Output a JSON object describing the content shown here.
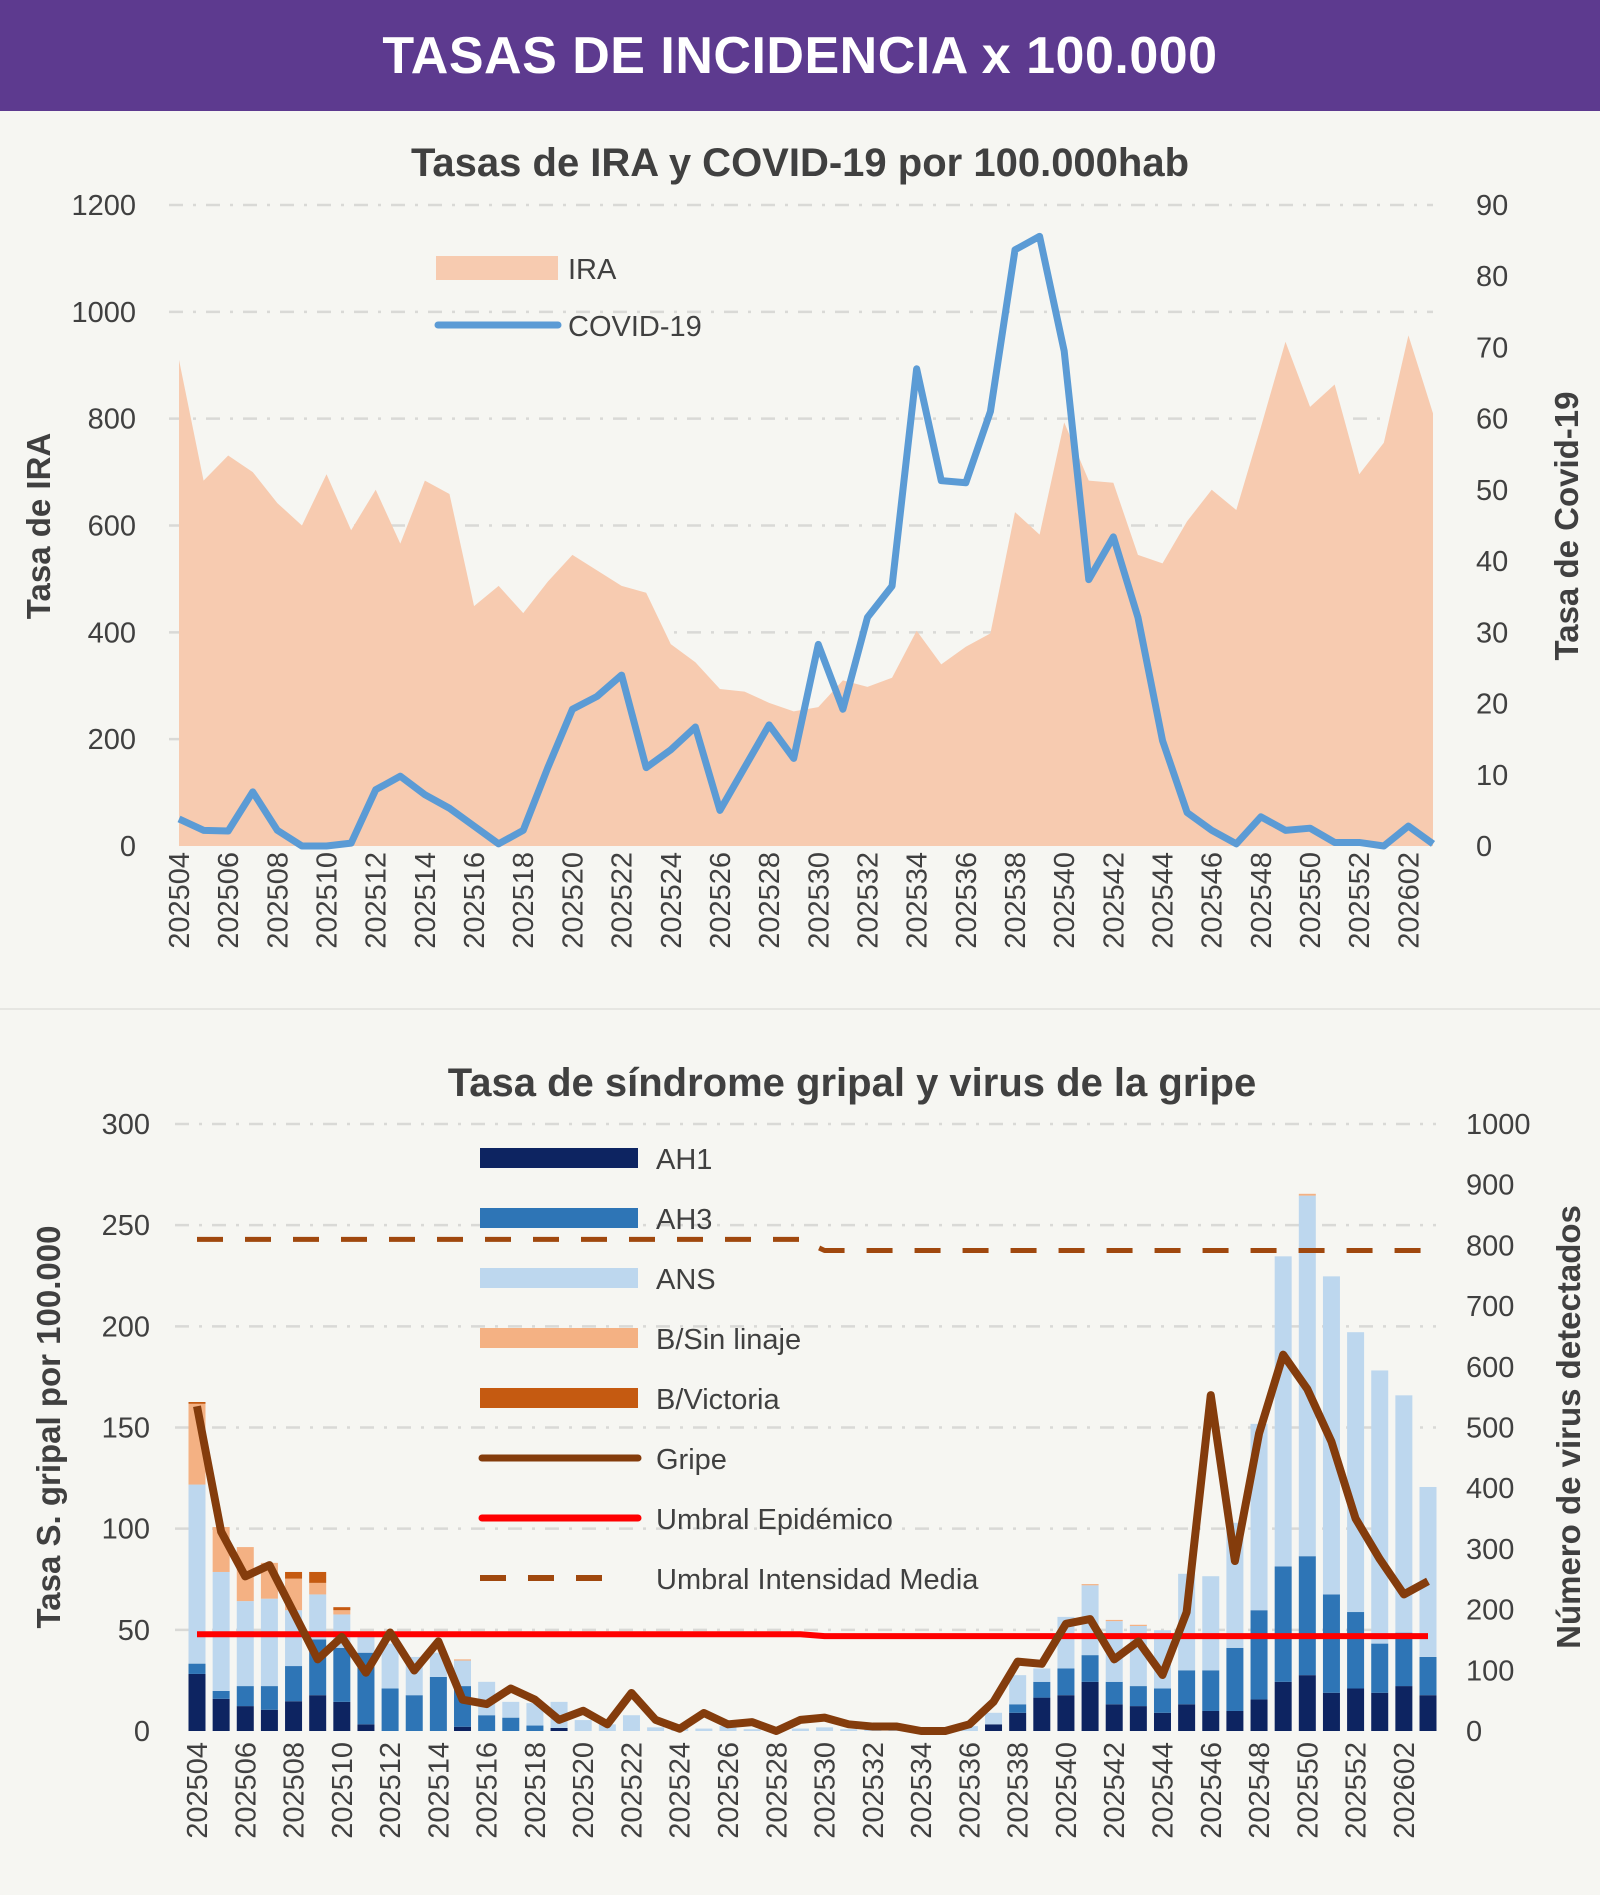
{
  "header": {
    "title": "TASAS DE INCIDENCIA x 100.000"
  },
  "colors": {
    "header_bg": "#5d3a8f",
    "IRA": "#f7cbb0",
    "COVID-19": "#5b9bd5",
    "AH1": "#0d2461",
    "AH3": "#2e75b6",
    "ANS": "#bdd7ee",
    "B/Sin linaje": "#f4b183",
    "B/Victoria": "#c55a11",
    "Gripe": "#843c0c",
    "Umbral Epidémico": "#ff0000",
    "Umbral Intensidad Media": "#a0480e"
  },
  "chart_data": [
    {
      "type": "area+line",
      "title": "Tasas de IRA y COVID-19 por 100.000hab",
      "ylabel": "Tasa de IRA",
      "y2label": "Tasa de Covid-19",
      "ylim": [
        0,
        1200
      ],
      "yticks": [
        0,
        200,
        400,
        600,
        800,
        1000,
        1200
      ],
      "y2lim": [
        0,
        90
      ],
      "y2ticks": [
        0,
        10,
        20,
        30,
        40,
        50,
        60,
        70,
        80,
        90
      ],
      "grid": true,
      "legend_position": "top-left",
      "x": [
        "202504",
        "202505",
        "202506",
        "202507",
        "202508",
        "202509",
        "202510",
        "202511",
        "202512",
        "202513",
        "202514",
        "202515",
        "202516",
        "202517",
        "202518",
        "202519",
        "202520",
        "202521",
        "202522",
        "202523",
        "202524",
        "202525",
        "202526",
        "202527",
        "202528",
        "202529",
        "202530",
        "202531",
        "202532",
        "202533",
        "202534",
        "202535",
        "202536",
        "202537",
        "202538",
        "202539",
        "202540",
        "202541",
        "202542",
        "202543",
        "202544",
        "202545",
        "202546",
        "202547",
        "202548",
        "202549",
        "202550",
        "202551",
        "202552",
        "202601",
        "202602",
        "202603"
      ],
      "xticks": [
        "202504",
        "202506",
        "202508",
        "202510",
        "202512",
        "202514",
        "202516",
        "202518",
        "202520",
        "202522",
        "202524",
        "202526",
        "202528",
        "202530",
        "202532",
        "202534",
        "202536",
        "202538",
        "202540",
        "202542",
        "202544",
        "202546",
        "202548",
        "202550",
        "202552",
        "202602"
      ],
      "series": [
        {
          "name": "IRA",
          "type": "area",
          "axis": "left",
          "values": [
            910,
            684,
            731,
            700,
            642,
            600,
            696,
            591,
            667,
            566,
            684,
            659,
            449,
            487,
            436,
            495,
            545,
            516,
            487,
            474,
            378,
            344,
            294,
            289,
            268,
            252,
            260,
            310,
            298,
            315,
            403,
            340,
            373,
            398,
            625,
            583,
            793,
            684,
            680,
            545,
            529,
            608,
            667,
            629,
            784,
            944,
            822,
            864,
            696,
            755,
            956,
            810
          ]
        },
        {
          "name": "COVID-19",
          "type": "line",
          "axis": "right",
          "values": [
            3.8,
            2.2,
            2.1,
            7.6,
            2.2,
            0,
            0,
            0.4,
            7.9,
            9.8,
            7.2,
            5.3,
            2.8,
            0.3,
            2.2,
            11,
            19.2,
            21,
            24,
            11,
            13.5,
            16.7,
            5,
            11,
            17,
            12.3,
            28.3,
            19.2,
            32.1,
            36.5,
            67,
            51.3,
            51,
            61,
            83.7,
            85.6,
            69.5,
            37.4,
            43.4,
            32.1,
            14.8,
            4.7,
            2.2,
            0.3,
            4.1,
            2.2,
            2.5,
            0.5,
            0.5,
            0,
            2.8,
            0.3
          ]
        }
      ]
    },
    {
      "type": "stacked-bar+line",
      "title": "Tasa de síndrome gripal y virus de la gripe",
      "ylabel": "Tasa S. gripal por 100.000",
      "y2label": "Número de virus detectados",
      "ylim": [
        0,
        300
      ],
      "yticks": [
        0,
        50,
        100,
        150,
        200,
        250,
        300
      ],
      "y2lim": [
        0,
        1000
      ],
      "y2ticks": [
        0,
        100,
        200,
        300,
        400,
        500,
        600,
        700,
        800,
        900,
        1000
      ],
      "grid": true,
      "legend_position": "top-left",
      "x": [
        "202504",
        "202505",
        "202506",
        "202507",
        "202508",
        "202509",
        "202510",
        "202511",
        "202512",
        "202513",
        "202514",
        "202515",
        "202516",
        "202517",
        "202518",
        "202519",
        "202520",
        "202521",
        "202522",
        "202523",
        "202524",
        "202525",
        "202526",
        "202527",
        "202528",
        "202529",
        "202530",
        "202531",
        "202532",
        "202533",
        "202534",
        "202535",
        "202536",
        "202537",
        "202538",
        "202539",
        "202540",
        "202541",
        "202542",
        "202543",
        "202544",
        "202545",
        "202546",
        "202547",
        "202548",
        "202549",
        "202550",
        "202551",
        "202552",
        "202601",
        "202602",
        "202603"
      ],
      "xticks": [
        "202504",
        "202506",
        "202508",
        "202510",
        "202512",
        "202514",
        "202516",
        "202518",
        "202520",
        "202522",
        "202524",
        "202526",
        "202528",
        "202530",
        "202532",
        "202534",
        "202536",
        "202538",
        "202540",
        "202542",
        "202544",
        "202546",
        "202548",
        "202550",
        "202552",
        "202602"
      ],
      "bars": [
        {
          "name": "AH1",
          "axis": "right",
          "values": [
            94,
            53,
            41,
            35,
            49,
            59,
            48,
            11,
            0,
            0,
            0,
            7,
            0,
            0,
            0,
            5,
            0,
            0,
            0,
            0,
            0,
            0,
            0,
            0,
            0,
            0,
            0,
            0,
            0,
            0,
            0,
            0,
            0,
            11,
            30,
            55,
            59,
            81,
            44,
            41,
            30,
            44,
            33,
            33,
            52,
            81,
            92,
            63,
            70,
            63,
            74,
            59
          ]
        },
        {
          "name": "AH3",
          "axis": "right",
          "values": [
            17,
            13,
            33,
            39,
            58,
            92,
            89,
            118,
            70,
            59,
            89,
            67,
            26,
            22,
            9,
            0,
            0,
            0,
            0,
            0,
            0,
            0,
            0,
            0,
            0,
            0,
            0,
            0,
            0,
            0,
            0,
            0,
            0,
            0,
            14,
            26,
            44,
            44,
            37,
            33,
            40,
            56,
            67,
            104,
            147,
            190,
            196,
            162,
            126,
            81,
            88,
            63
          ]
        },
        {
          "name": "ANS",
          "axis": "right",
          "values": [
            295,
            196,
            140,
            144,
            92,
            74,
            55,
            30,
            74,
            63,
            40,
            42,
            55,
            26,
            37,
            43,
            18,
            11,
            26,
            6,
            10,
            4,
            8,
            3,
            5,
            4,
            6,
            3,
            4,
            3,
            2,
            3,
            8,
            19,
            48,
            22,
            85,
            115,
            100,
            99,
            96,
            159,
            155,
            206,
            307,
            511,
            594,
            524,
            461,
            450,
            391,
            280
          ]
        },
        {
          "name": "B/Sin linaje",
          "axis": "right",
          "values": [
            133,
            74,
            89,
            59,
            52,
            19,
            7,
            0,
            0,
            0,
            0,
            2,
            0,
            0,
            0,
            0,
            0,
            0,
            0,
            0,
            0,
            0,
            0,
            0,
            0,
            0,
            0,
            0,
            0,
            0,
            0,
            0,
            0,
            0,
            0,
            0,
            0,
            2,
            2,
            2,
            0,
            0,
            0,
            0,
            0,
            0,
            3,
            0,
            0,
            0,
            0,
            0
          ]
        },
        {
          "name": "B/Victoria",
          "axis": "right",
          "values": [
            3,
            0,
            0,
            0,
            11,
            18,
            5,
            0,
            0,
            0,
            0,
            0,
            0,
            0,
            0,
            0,
            0,
            0,
            0,
            0,
            0,
            0,
            0,
            0,
            0,
            0,
            0,
            0,
            0,
            0,
            0,
            0,
            0,
            0,
            0,
            0,
            0,
            0,
            0,
            0,
            0,
            0,
            0,
            0,
            0,
            0,
            0,
            0,
            0,
            0,
            0,
            0
          ]
        }
      ],
      "lines": [
        {
          "name": "Gripe",
          "axis": "left",
          "style": "solid",
          "values": [
            160.5,
            98.5,
            76.4,
            82,
            58.7,
            35.4,
            46.5,
            28.8,
            48.7,
            29.9,
            44.3,
            15.5,
            13.3,
            21,
            15.5,
            5.5,
            10,
            3.3,
            18.8,
            5.5,
            1.1,
            8.9,
            3.3,
            4.4,
            0,
            5.5,
            6.6,
            3.3,
            2.2,
            2.2,
            0,
            0,
            3.3,
            14.4,
            34.3,
            33.2,
            53,
            55.3,
            35.4,
            44.3,
            27.7,
            58.7,
            166,
            84,
            147,
            186,
            169,
            143,
            105,
            85,
            67.5,
            74
          ]
        },
        {
          "name": "Umbral Epidémico",
          "axis": "left",
          "style": "solid",
          "values": [
            47.8,
            47.8,
            47.8,
            47.8,
            47.8,
            47.8,
            47.8,
            47.8,
            47.8,
            47.8,
            47.8,
            47.8,
            47.8,
            47.8,
            47.8,
            47.8,
            47.8,
            47.8,
            47.8,
            47.8,
            47.8,
            47.8,
            47.8,
            47.8,
            47.8,
            47.8,
            46.9,
            46.9,
            46.9,
            46.9,
            46.9,
            46.9,
            46.9,
            46.9,
            46.9,
            46.9,
            46.9,
            46.9,
            46.9,
            46.9,
            46.9,
            46.9,
            46.9,
            46.9,
            46.9,
            46.9,
            46.9,
            46.9,
            46.9,
            46.9,
            46.9,
            46.9
          ]
        },
        {
          "name": "Umbral Intensidad Media",
          "axis": "left",
          "style": "dashed",
          "values": [
            243,
            243,
            243,
            243,
            243,
            243,
            243,
            243,
            243,
            243,
            243,
            243,
            243,
            243,
            243,
            243,
            243,
            243,
            243,
            243,
            243,
            243,
            243,
            243,
            243,
            243,
            237.5,
            237.5,
            237.5,
            237.5,
            237.5,
            237.5,
            237.5,
            237.5,
            237.5,
            237.5,
            237.5,
            237.5,
            237.5,
            237.5,
            237.5,
            237.5,
            237.5,
            237.5,
            237.5,
            237.5,
            237.5,
            237.5,
            237.5,
            237.5,
            237.5,
            237.5
          ]
        }
      ]
    }
  ]
}
